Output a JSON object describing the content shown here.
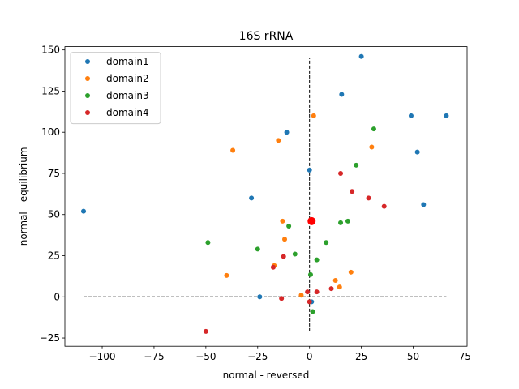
{
  "chart_data": {
    "type": "scatter",
    "title": "16S rRNA",
    "xlabel": "normal - reversed",
    "ylabel": "normal - equilibrium",
    "xlim": [
      -118,
      76
    ],
    "ylim": [
      -30,
      152
    ],
    "x_ticks": [
      -100,
      -75,
      -50,
      -25,
      0,
      25,
      50,
      75
    ],
    "y_ticks": [
      -25,
      0,
      25,
      50,
      75,
      100,
      125,
      150
    ],
    "x_tick_labels": [
      "−100",
      "−75",
      "−50",
      "−25",
      "0",
      "25",
      "50",
      "75"
    ],
    "y_tick_labels": [
      "−25",
      "0",
      "25",
      "50",
      "75",
      "100",
      "125",
      "150"
    ],
    "grid": false,
    "legend_position": "upper left",
    "reference_lines": {
      "vertical": {
        "x": 0,
        "y_from": -21,
        "y_to": 145
      },
      "horizontal": {
        "y": 0,
        "x_from": -109,
        "x_to": 66
      }
    },
    "highlight_point": {
      "x": 1,
      "y": 46,
      "color": "#ff0000"
    },
    "series": [
      {
        "name": "domain1",
        "color": "#1f77b4",
        "x": [
          25,
          15.5,
          49,
          66,
          52,
          -11,
          0,
          -28,
          -109,
          55,
          -24,
          1
        ],
        "y": [
          146,
          123,
          110,
          110,
          88,
          100,
          77,
          60,
          52,
          56,
          0,
          -3
        ]
      },
      {
        "name": "domain2",
        "color": "#ff7f0e",
        "x": [
          2,
          -37,
          -15,
          30,
          -13,
          -12,
          -40,
          -17,
          12.5,
          20,
          14.5,
          -4
        ],
        "y": [
          110,
          89,
          95,
          91,
          46,
          35,
          13,
          19,
          10,
          15,
          6,
          1
        ]
      },
      {
        "name": "domain3",
        "color": "#2ca02c",
        "x": [
          31,
          22.5,
          18.5,
          15,
          -10,
          -49,
          -25,
          -7,
          8,
          3.5,
          0.5,
          1.5
        ],
        "y": [
          102,
          80,
          46,
          45,
          43,
          33,
          29,
          26,
          33,
          22.5,
          13.5,
          -9
        ]
      },
      {
        "name": "domain4",
        "color": "#d62728",
        "x": [
          15,
          20.5,
          28.5,
          36,
          -12.5,
          -17.5,
          10.5,
          3.5,
          -1,
          -13.5,
          0,
          -50
        ],
        "y": [
          75,
          64,
          60,
          55,
          24.5,
          18,
          5,
          3,
          3,
          -1,
          -3,
          -21
        ]
      }
    ]
  }
}
